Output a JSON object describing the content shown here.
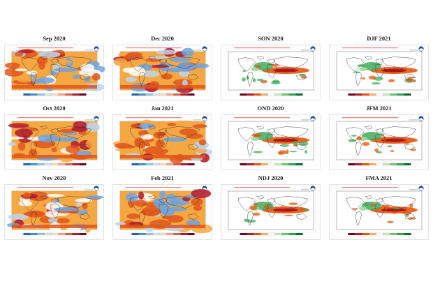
{
  "panels": [
    {
      "title": "Sep 2020",
      "type": "temp"
    },
    {
      "title": "Dec 2020",
      "type": "temp"
    },
    {
      "title": "SON 2020",
      "type": "precip"
    },
    {
      "title": "DJF 2021",
      "type": "precip"
    },
    {
      "title": "Oct 2020",
      "type": "temp"
    },
    {
      "title": "Jan 2021",
      "type": "temp"
    },
    {
      "title": "OND 2020",
      "type": "precip"
    },
    {
      "title": "JFM 2021",
      "type": "precip"
    },
    {
      "title": "Nov 2020",
      "type": "temp"
    },
    {
      "title": "Feb 2021",
      "type": "temp"
    },
    {
      "title": "NDJ 2020",
      "type": "precip"
    },
    {
      "title": "FMA 2021",
      "type": "precip"
    }
  ],
  "colors": {
    "warm_dark": "#b2182b",
    "warm": "#e0561b",
    "warm_light": "#f5a742",
    "cool": "#6fa3dd",
    "cool_light": "#bcd3ef",
    "wet": "#41ab5d",
    "wet_light": "#a1d99b",
    "dry": "#e6550d",
    "dry_dark": "#a50f15",
    "logo": "#1f4e9c"
  },
  "icons": [
    "noaa-logo-icon"
  ]
}
